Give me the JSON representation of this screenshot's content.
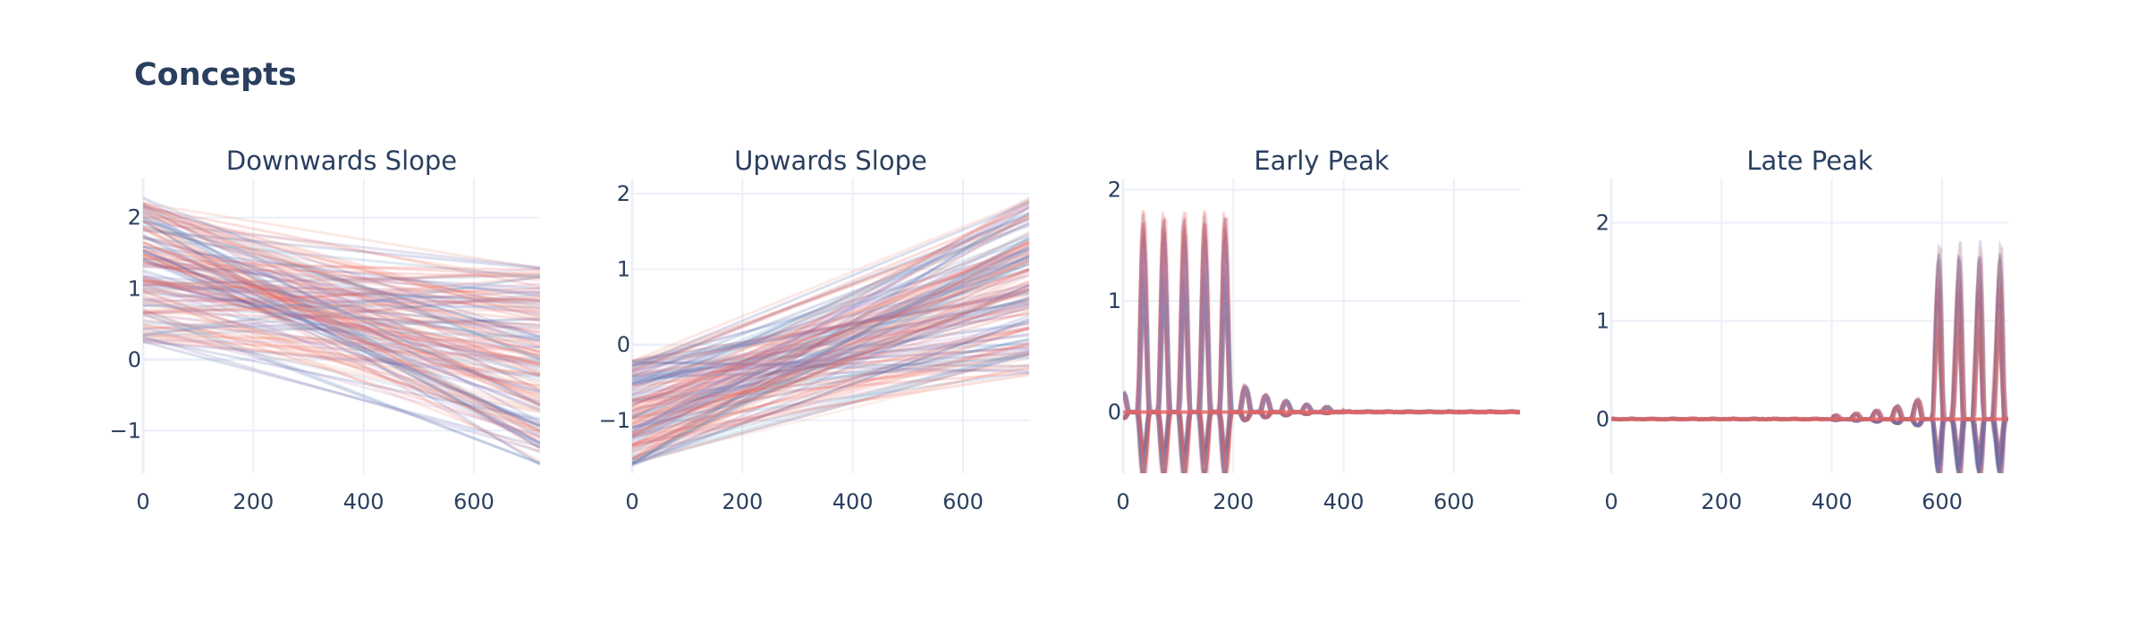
{
  "figure": {
    "title": "Concepts"
  },
  "colors": {
    "text": "#2a3f5f",
    "grid": "#ebf0f8",
    "palette": [
      "#e9635c",
      "#f08f7e",
      "#4a5fa5",
      "#7e68b0",
      "#5f97c3",
      "#b78bc1",
      "#f3b8a5",
      "#9cc0dc"
    ]
  },
  "chart_data": [
    {
      "type": "line",
      "title": "Downwards Slope",
      "concept": "downward",
      "xlim": [
        0,
        720
      ],
      "ylim": [
        -1.6,
        2.55
      ],
      "xticks": [
        0,
        200,
        400,
        600
      ],
      "yticks": [
        -1,
        0,
        1,
        2
      ],
      "ytick_labels": [
        "−1",
        "0",
        "1",
        "2"
      ],
      "n_series": 160,
      "start_range": [
        0.25,
        2.3
      ],
      "end_range": [
        -1.5,
        1.3
      ]
    },
    {
      "type": "line",
      "title": "Upwards Slope",
      "concept": "upward",
      "xlim": [
        0,
        720
      ],
      "ylim": [
        -1.7,
        2.2
      ],
      "xticks": [
        0,
        200,
        400,
        600
      ],
      "yticks": [
        -1,
        0,
        1,
        2
      ],
      "ytick_labels": [
        "−1",
        "0",
        "1",
        "2"
      ],
      "n_series": 160,
      "start_range": [
        -1.6,
        -0.2
      ],
      "end_range": [
        -0.4,
        1.95
      ]
    },
    {
      "type": "line",
      "title": "Early Peak",
      "concept": "early_peak",
      "xlim": [
        0,
        720
      ],
      "ylim": [
        -0.55,
        2.1
      ],
      "xticks": [
        0,
        200,
        400,
        600
      ],
      "yticks": [
        0,
        1,
        2
      ],
      "ytick_labels": [
        "0",
        "1",
        "2"
      ],
      "n_series": 120,
      "peak_centers": [
        74,
        111,
        148,
        185
      ],
      "oscillation_period": 37,
      "peak_amplitude_range": [
        0.9,
        1.95
      ],
      "decay_until": 400
    },
    {
      "type": "line",
      "title": "Late Peak",
      "concept": "late_peak",
      "xlim": [
        0,
        720
      ],
      "ylim": [
        -0.55,
        2.45
      ],
      "xticks": [
        0,
        200,
        400,
        600
      ],
      "yticks": [
        0,
        1,
        2
      ],
      "ytick_labels": [
        "0",
        "1",
        "2"
      ],
      "n_series": 120,
      "peak_centers": [
        604,
        641,
        678,
        715
      ],
      "oscillation_period": 37,
      "peak_amplitude_range": [
        1.0,
        2.25
      ],
      "rise_from": 400
    }
  ]
}
